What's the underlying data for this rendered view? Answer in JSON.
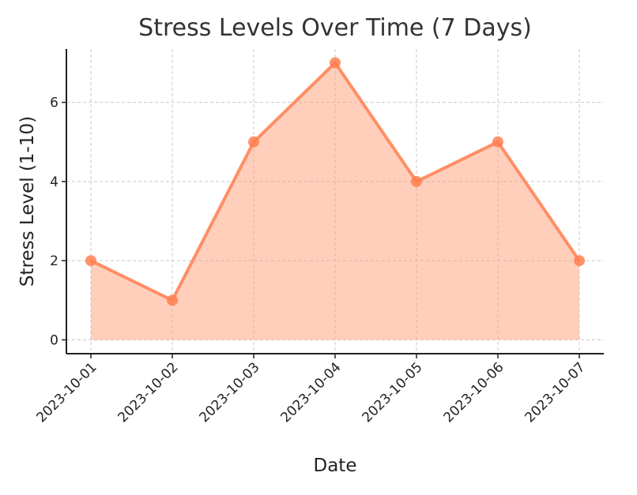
{
  "chart_data": {
    "type": "area",
    "title": "Stress Levels Over Time (7 Days)",
    "xlabel": "Date",
    "ylabel": "Stress Level (1-10)",
    "categories": [
      "2023-10-01",
      "2023-10-02",
      "2023-10-03",
      "2023-10-04",
      "2023-10-05",
      "2023-10-06",
      "2023-10-07"
    ],
    "series": [
      {
        "values": [
          2,
          1,
          5,
          7,
          4,
          5,
          2
        ]
      }
    ],
    "ylim": [
      -0.35,
      7.35
    ],
    "yticks": [
      0,
      2,
      4,
      6
    ],
    "grid": true,
    "line_color": "#ff7f50",
    "fill_color": "#ffa07a"
  }
}
